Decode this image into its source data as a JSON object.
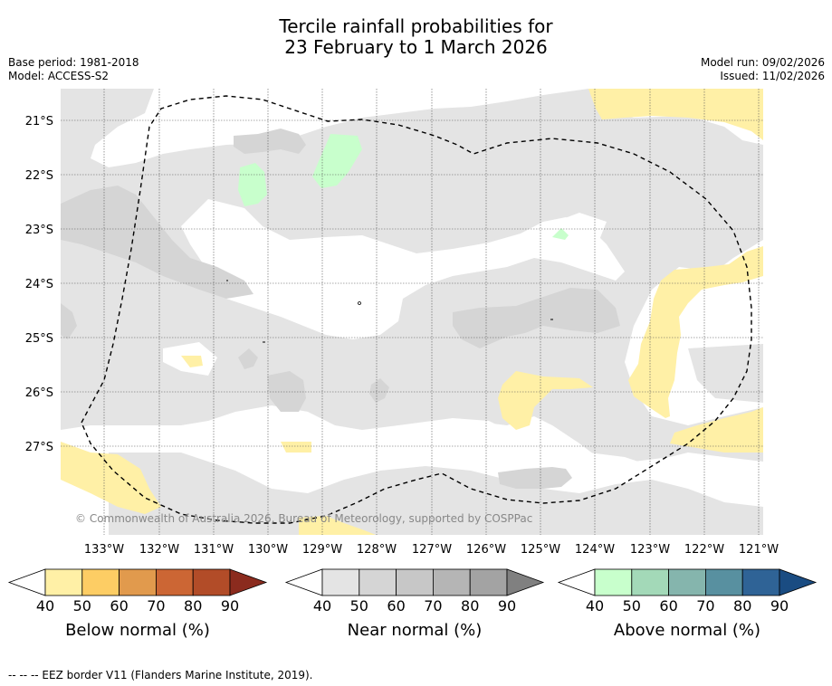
{
  "title_line1": "Tercile rainfall probabilities for",
  "title_line2": "23 February to 1 March 2026",
  "base_period": "Base period: 1981-2018",
  "model": "Model: ACCESS-S2",
  "model_run": "Model run: 09/02/2026",
  "issued": "Issued: 11/02/2026",
  "copyright": "© Commonwealth of Australia 2026, Bureau of Meteorology, supported by COSPPac",
  "lat_labels": [
    "21°S",
    "22°S",
    "23°S",
    "24°S",
    "25°S",
    "26°S",
    "27°S"
  ],
  "lon_labels": [
    "133°W",
    "132°W",
    "131°W",
    "130°W",
    "129°W",
    "128°W",
    "127°W",
    "126°W",
    "125°W",
    "124°W",
    "123°W",
    "122°W",
    "121°W"
  ],
  "colorbars": [
    {
      "label": "Below normal (%)",
      "ticks": [
        "40",
        "50",
        "60",
        "70",
        "80",
        "90"
      ],
      "colors": [
        "#fff0a6",
        "#fdcd64",
        "#e19a4d",
        "#cc6634",
        "#b24c28",
        "#8b2b1e"
      ]
    },
    {
      "label": "Near normal (%)",
      "ticks": [
        "40",
        "50",
        "60",
        "70",
        "80",
        "90"
      ],
      "colors": [
        "#e4e4e4",
        "#d5d5d5",
        "#c7c7c7",
        "#b5b5b5",
        "#a3a3a3",
        "#808080"
      ]
    },
    {
      "label": "Above normal (%)",
      "ticks": [
        "40",
        "50",
        "60",
        "70",
        "80",
        "90"
      ],
      "colors": [
        "#c8ffcc",
        "#a3d9b8",
        "#85b5ad",
        "#5890a0",
        "#2f6396",
        "#1a4c82"
      ]
    }
  ],
  "colors": {
    "below_40": "#fff0a6",
    "near_40": "#e4e4e4",
    "near_50": "#d5d5d5",
    "above_40": "#c8ffcc"
  },
  "footnote": "--  --  -- EEZ border V11 (Flanders Marine Institute, 2019)."
}
